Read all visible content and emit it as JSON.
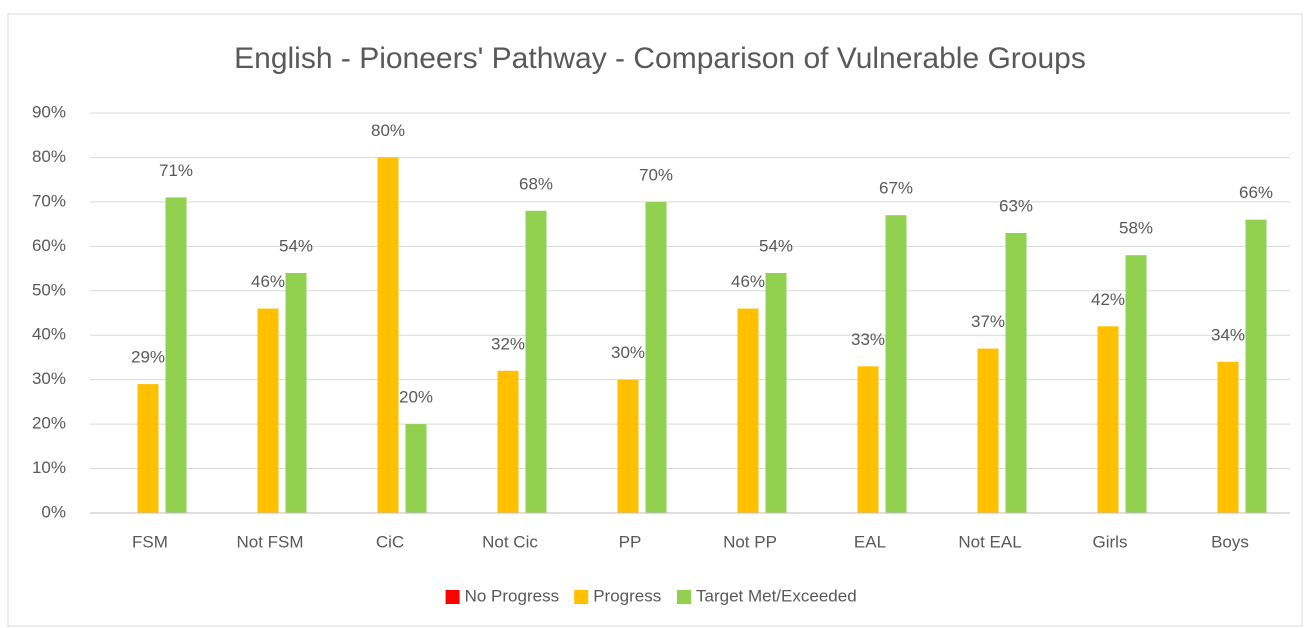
{
  "chart_data": {
    "type": "bar",
    "title": "English - Pioneers' Pathway - Comparison of Vulnerable Groups",
    "categories": [
      "FSM",
      "Not FSM",
      "CiC",
      "Not Cic",
      "PP",
      "Not PP",
      "EAL",
      "Not EAL",
      "Girls",
      "Boys"
    ],
    "series": [
      {
        "name": "No Progress",
        "color": "#ff0000",
        "values": [
          0,
          0,
          0,
          0,
          0,
          0,
          0,
          0,
          0,
          0
        ]
      },
      {
        "name": "Progress",
        "color": "#ffc000",
        "values": [
          29,
          46,
          80,
          32,
          30,
          46,
          33,
          37,
          42,
          34
        ],
        "value_labels": [
          "29%",
          "46%",
          "80%",
          "32%",
          "30%",
          "46%",
          "33%",
          "37%",
          "42%",
          "34%"
        ]
      },
      {
        "name": "Target Met/Exceeded",
        "color": "#92d050",
        "values": [
          71,
          54,
          20,
          68,
          70,
          54,
          67,
          63,
          58,
          66
        ],
        "value_labels": [
          "71%",
          "54%",
          "20%",
          "68%",
          "70%",
          "54%",
          "67%",
          "63%",
          "58%",
          "66%"
        ]
      }
    ],
    "ylim": [
      0,
      90
    ],
    "yticks": [
      {
        "value": 0,
        "label": "0%"
      },
      {
        "value": 10,
        "label": "10%"
      },
      {
        "value": 20,
        "label": "20%"
      },
      {
        "value": 30,
        "label": "30%"
      },
      {
        "value": 40,
        "label": "40%"
      },
      {
        "value": 50,
        "label": "50%"
      },
      {
        "value": 60,
        "label": "60%"
      },
      {
        "value": 70,
        "label": "70%"
      },
      {
        "value": 80,
        "label": "80%"
      },
      {
        "value": 90,
        "label": "90%"
      }
    ],
    "grid": true,
    "legend": "bottom"
  }
}
